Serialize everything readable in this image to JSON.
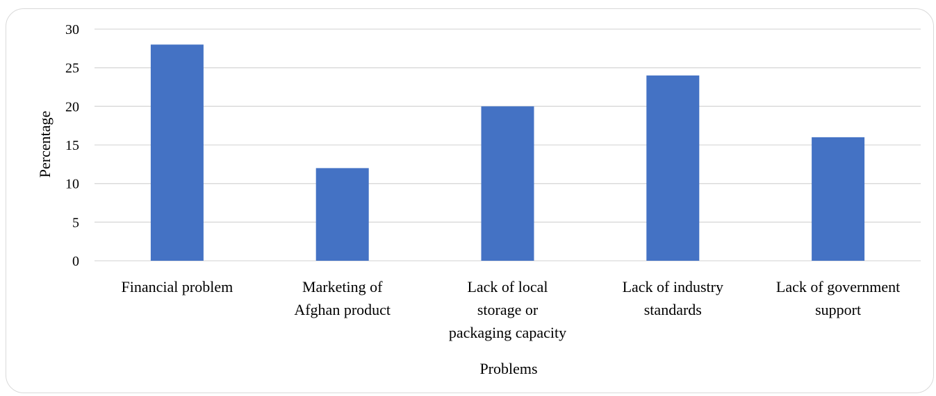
{
  "chart_data": {
    "type": "bar",
    "categories": [
      [
        "Financial problem"
      ],
      [
        "Marketing of",
        "Afghan product"
      ],
      [
        "Lack of local",
        "storage or",
        "packaging capacity"
      ],
      [
        "Lack of industry",
        "standards"
      ],
      [
        "Lack of government",
        "support"
      ]
    ],
    "series": [
      {
        "values": [
          28,
          12,
          20,
          24,
          16
        ],
        "color": "#4472c4"
      }
    ],
    "xlabel": "Problems",
    "ylabel": "Percentage",
    "ylim": [
      0,
      30
    ],
    "yticks": [
      "0",
      "5",
      "10",
      "15",
      "20",
      "25",
      "30"
    ],
    "grid": true,
    "gridColor": "#d9d9d9"
  }
}
